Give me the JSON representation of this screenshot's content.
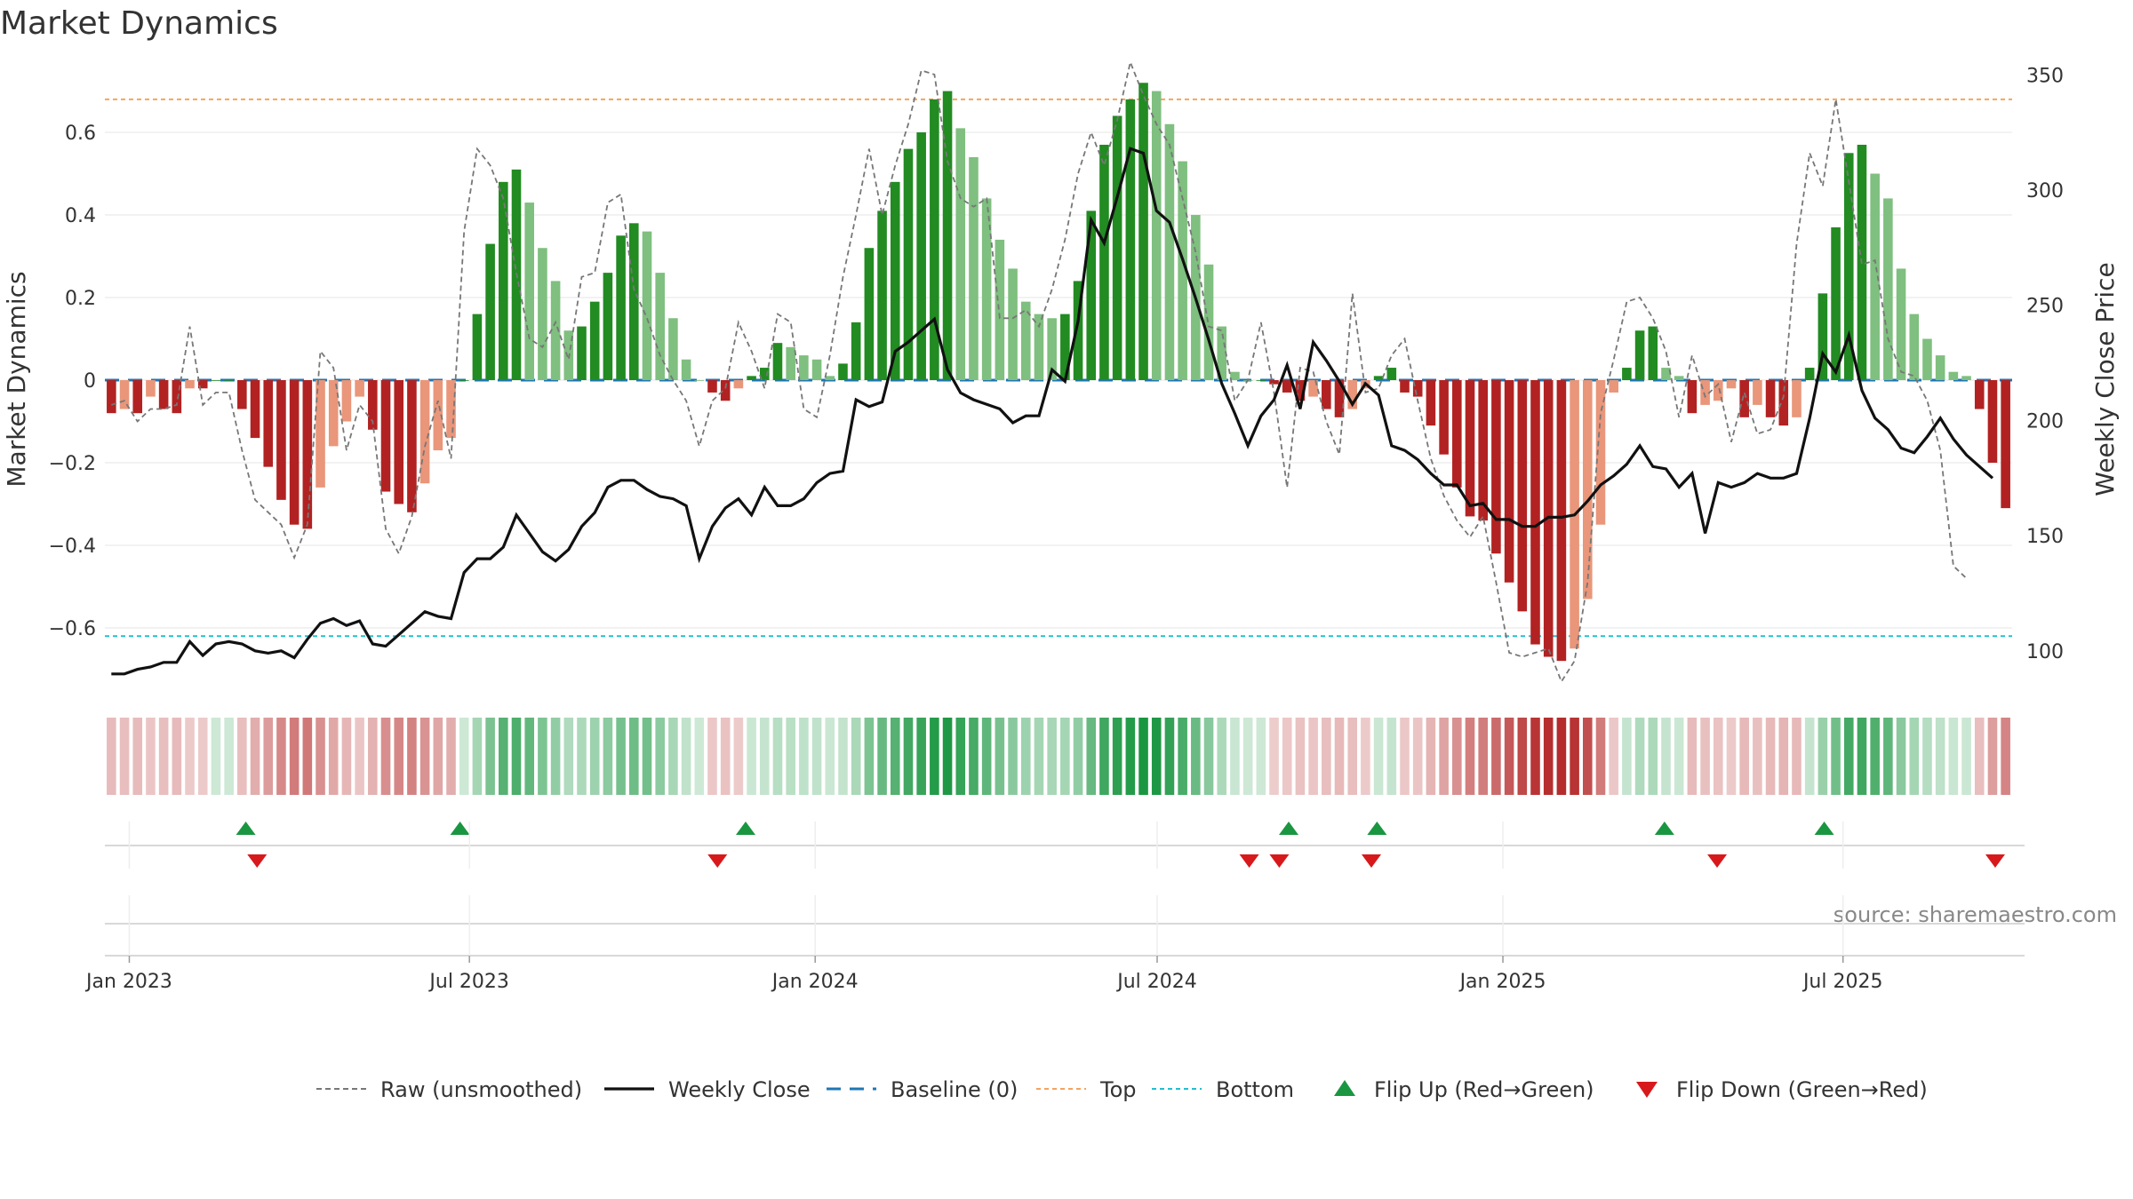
{
  "chart_data": {
    "type": "bar",
    "title": "Market Dynamics",
    "ylabel": "Market Dynamics",
    "y2label": "Weekly Close Price",
    "source": "source: sharemaestro.com",
    "ylim": [
      -0.77,
      0.77
    ],
    "y2lim": [
      79.5,
      355.5
    ],
    "yticks": [
      0.6,
      0.4,
      0.2,
      0,
      -0.2,
      -0.4,
      -0.6
    ],
    "ytick_labels": [
      "0.6",
      "0.4",
      "0.2",
      "0",
      "−0.2",
      "−0.4",
      "−0.6"
    ],
    "y2ticks": [
      350,
      300,
      250,
      200,
      150,
      100
    ],
    "y2tick_labels": [
      "350",
      "300",
      "250",
      "200",
      "150",
      "100"
    ],
    "x_start": "2022-12-19",
    "x_end": "2025-09-29",
    "x_week_step_days": 7,
    "xtick_dates": [
      "2023-01-01",
      "2023-07-01",
      "2024-01-01",
      "2024-07-01",
      "2025-01-01",
      "2025-07-01"
    ],
    "xtick_labels": [
      "Jan 2023",
      "Jul 2023",
      "Jan 2024",
      "Jul 2024",
      "Jan 2025",
      "Jul 2025"
    ],
    "top_threshold": 0.68,
    "bottom_threshold": -0.62,
    "baseline": 0,
    "grid": true,
    "legend_position": "bottom",
    "colors": {
      "green_dark": "#228b22",
      "green_light": "#7fbf7f",
      "red_dark": "#b22222",
      "red_light": "#e9967a",
      "top_line": "#f4a460",
      "bottom_line": "#20c0d0",
      "baseline": "#1f77b4",
      "raw": "#777777",
      "close": "#111111",
      "flip_up": "#1a9641",
      "flip_down": "#d7191c"
    },
    "series": [
      {
        "name": "Market Dynamics",
        "values": [
          -0.08,
          -0.07,
          -0.08,
          -0.04,
          -0.07,
          -0.08,
          -0.02,
          -0.02,
          0,
          0,
          -0.07,
          -0.14,
          -0.21,
          -0.29,
          -0.35,
          -0.36,
          -0.26,
          -0.16,
          -0.1,
          -0.04,
          -0.12,
          -0.27,
          -0.3,
          -0.32,
          -0.25,
          -0.17,
          -0.14,
          0,
          0.16,
          0.33,
          0.48,
          0.51,
          0.43,
          0.32,
          0.24,
          0.12,
          0.13,
          0.19,
          0.26,
          0.35,
          0.38,
          0.36,
          0.26,
          0.15,
          0.05,
          0,
          -0.03,
          -0.05,
          -0.02,
          0.01,
          0.03,
          0.09,
          0.08,
          0.06,
          0.05,
          0.01,
          0.04,
          0.14,
          0.32,
          0.41,
          0.48,
          0.56,
          0.6,
          0.68,
          0.7,
          0.61,
          0.54,
          0.44,
          0.34,
          0.27,
          0.19,
          0.16,
          0.15,
          0.16,
          0.24,
          0.41,
          0.57,
          0.64,
          0.68,
          0.72,
          0.7,
          0.62,
          0.53,
          0.4,
          0.28,
          0.13,
          0.02,
          0,
          0,
          -0.01,
          -0.03,
          -0.05,
          -0.04,
          -0.07,
          -0.09,
          -0.07,
          -0.02,
          0.01,
          0.03,
          -0.03,
          -0.04,
          -0.11,
          -0.18,
          -0.26,
          -0.33,
          -0.34,
          -0.42,
          -0.49,
          -0.56,
          -0.64,
          -0.67,
          -0.68,
          -0.65,
          -0.53,
          -0.35,
          -0.03,
          0.03,
          0.12,
          0.13,
          0.03,
          0.01,
          -0.08,
          -0.06,
          -0.05,
          -0.02,
          -0.09,
          -0.06,
          -0.09,
          -0.11,
          -0.09,
          0.03,
          0.21,
          0.37,
          0.55,
          0.57,
          0.5,
          0.44,
          0.27,
          0.16,
          0.1,
          0.06,
          0.02,
          0.01,
          -0.07,
          -0.2,
          -0.31
        ]
      },
      {
        "name": "Raw (unsmoothed)",
        "values": [
          -0.06,
          -0.05,
          -0.1,
          -0.07,
          -0.07,
          -0.06,
          0.13,
          -0.06,
          -0.03,
          -0.03,
          -0.17,
          -0.29,
          -0.32,
          -0.35,
          -0.43,
          -0.35,
          0.07,
          0.03,
          -0.17,
          -0.06,
          -0.1,
          -0.36,
          -0.42,
          -0.33,
          -0.16,
          -0.05,
          -0.19,
          0.36,
          0.56,
          0.52,
          0.44,
          0.26,
          0.1,
          0.08,
          0.14,
          0.05,
          0.25,
          0.26,
          0.43,
          0.45,
          0.22,
          0.15,
          0.06,
          0,
          -0.05,
          -0.16,
          -0.05,
          -0.02,
          0.14,
          0.07,
          -0.02,
          0.16,
          0.14,
          -0.07,
          -0.09,
          0.06,
          0.25,
          0.4,
          0.56,
          0.4,
          0.52,
          0.62,
          0.75,
          0.74,
          0.53,
          0.44,
          0.42,
          0.44,
          0.15,
          0.15,
          0.17,
          0.13,
          0.22,
          0.34,
          0.5,
          0.6,
          0.52,
          0.63,
          0.77,
          0.69,
          0.62,
          0.57,
          0.44,
          0.31,
          0.13,
          0.12,
          -0.05,
          0,
          0.14,
          -0.03,
          -0.26,
          0.03,
          0.02,
          -0.1,
          -0.18,
          0.21,
          -0.03,
          -0.02,
          0.06,
          0.1,
          -0.05,
          -0.19,
          -0.28,
          -0.34,
          -0.38,
          -0.33,
          -0.49,
          -0.66,
          -0.67,
          -0.66,
          -0.65,
          -0.73,
          -0.68,
          -0.49,
          -0.08,
          0.05,
          0.19,
          0.2,
          0.15,
          0.07,
          -0.09,
          0.06,
          -0.04,
          -0.01,
          -0.15,
          -0.03,
          -0.13,
          -0.12,
          -0.04,
          0.33,
          0.55,
          0.47,
          0.68,
          0.48,
          0.28,
          0.29,
          0.1,
          0.02,
          0.01,
          -0.05,
          -0.17,
          -0.45,
          -0.48
        ]
      },
      {
        "name": "Weekly Close",
        "values": [
          90,
          90,
          92,
          93,
          95,
          95,
          104,
          98,
          103,
          104,
          103,
          100,
          99,
          100,
          97,
          105,
          112,
          114,
          111,
          113,
          103,
          102,
          107,
          112,
          117,
          115,
          114,
          134,
          140,
          140,
          145,
          159,
          151,
          143,
          139,
          144,
          154,
          160,
          171,
          174,
          174,
          170,
          167,
          166,
          163,
          140,
          154,
          162,
          166,
          159,
          171,
          163,
          163,
          166,
          173,
          177,
          178,
          209,
          206,
          208,
          230,
          234,
          239,
          244,
          222,
          212,
          209,
          207,
          205,
          199,
          202,
          202,
          222,
          217,
          243,
          287,
          277,
          297,
          318,
          316,
          291,
          286,
          270,
          253,
          235,
          216,
          203,
          189,
          202,
          209,
          224,
          205,
          234,
          226,
          217,
          207,
          216,
          211,
          189,
          187,
          183,
          177,
          172,
          172,
          163,
          164,
          157,
          157,
          154,
          154,
          158,
          158,
          159,
          165,
          172,
          176,
          181,
          189,
          180,
          179,
          171,
          177,
          151,
          173,
          171,
          173,
          177,
          175,
          175,
          177,
          201,
          229,
          221,
          237,
          213,
          201,
          196,
          188,
          186,
          193,
          201,
          192,
          185,
          180,
          175
        ]
      },
      {
        "name": "Baseline (0)",
        "values": [
          0
        ]
      },
      {
        "name": "Top",
        "values": [
          0.68
        ]
      },
      {
        "name": "Bottom",
        "values": [
          -0.62
        ]
      },
      {
        "name": "Flip Up (Red→Green)",
        "dates": [
          "2023-03-04",
          "2023-06-26",
          "2023-11-25",
          "2024-09-09",
          "2024-10-26",
          "2025-03-28",
          "2025-06-21"
        ]
      },
      {
        "name": "Flip Down (Green→Red)",
        "dates": [
          "2023-03-10",
          "2023-11-10",
          "2024-08-19",
          "2024-09-04",
          "2024-10-23",
          "2025-04-25",
          "2025-09-20"
        ]
      }
    ]
  }
}
